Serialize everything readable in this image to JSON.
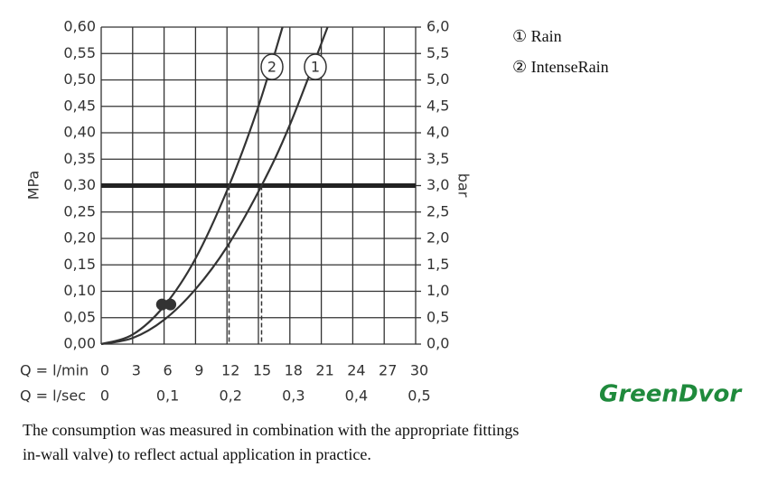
{
  "chart_data": {
    "type": "line",
    "ylabel": "MPa",
    "y2label": "bar",
    "xlabel": "Q = l/min",
    "x2label": "Q = l/sec",
    "xlim": [
      0,
      30
    ],
    "xticks": [
      0,
      3,
      6,
      9,
      12,
      15,
      18,
      21,
      24,
      27,
      30
    ],
    "x2lim": [
      0,
      0.5
    ],
    "x2ticks": [
      0,
      {
        "value": 0.1,
        "label": "0,1"
      },
      {
        "value": 0.2,
        "label": "0,2"
      },
      {
        "value": 0.3,
        "label": "0,3"
      },
      {
        "value": 0.4,
        "label": "0,4"
      },
      {
        "value": 0.5,
        "label": "0,5"
      }
    ],
    "ylim": [
      0,
      0.6
    ],
    "yticks": [
      {
        "value": 0,
        "label": "0,00"
      },
      {
        "value": 0.05,
        "label": "0,05"
      },
      {
        "value": 0.1,
        "label": "0,10"
      },
      {
        "value": 0.15,
        "label": "0,15"
      },
      {
        "value": 0.2,
        "label": "0,20"
      },
      {
        "value": 0.25,
        "label": "0,25"
      },
      {
        "value": 0.3,
        "label": "0,30"
      },
      {
        "value": 0.35,
        "label": "0,35"
      },
      {
        "value": 0.4,
        "label": "0,40"
      },
      {
        "value": 0.45,
        "label": "0,45"
      },
      {
        "value": 0.5,
        "label": "0,50"
      },
      {
        "value": 0.55,
        "label": "0,55"
      },
      {
        "value": 0.6,
        "label": "0,60"
      }
    ],
    "y2lim": [
      0,
      6
    ],
    "y2ticks": [
      {
        "value": 0,
        "label": "0,0"
      },
      {
        "value": 0.5,
        "label": "0,5"
      },
      {
        "value": 1,
        "label": "1,0"
      },
      {
        "value": 1.5,
        "label": "1,5"
      },
      {
        "value": 2,
        "label": "2,0"
      },
      {
        "value": 2.5,
        "label": "2,5"
      },
      {
        "value": 3,
        "label": "3,0"
      },
      {
        "value": 3.5,
        "label": "3,5"
      },
      {
        "value": 4,
        "label": "4,0"
      },
      {
        "value": 4.5,
        "label": "4,5"
      },
      {
        "value": 5,
        "label": "5,0"
      },
      {
        "value": 5.5,
        "label": "5,5"
      },
      {
        "value": 6,
        "label": "6,0"
      }
    ],
    "grid": true,
    "color": "#333333",
    "series": [
      {
        "name": "Rain",
        "symbol": "①",
        "label": "1",
        "color": "#333333",
        "x": [
          0,
          3,
          6,
          9,
          12,
          15.3,
          18,
          21.6
        ],
        "values": [
          0,
          0.0115,
          0.046,
          0.104,
          0.184,
          0.3,
          0.415,
          0.6
        ]
      },
      {
        "name": "IntenseRain",
        "symbol": "②",
        "label": "2",
        "color": "#333333",
        "x": [
          0,
          3,
          6,
          9,
          12.2,
          15,
          17.3
        ],
        "values": [
          0,
          0.018,
          0.072,
          0.162,
          0.3,
          0.45,
          0.6
        ]
      }
    ],
    "hline": 0.3,
    "vlines": [
      12.2,
      15.3
    ],
    "markers": {
      "x": [
        5.8,
        6.6
      ],
      "y": [
        0.075,
        0.075
      ]
    },
    "footnote": [
      "The consumption was measured in combination with the appropriate fittings",
      "in-wall valve) to reflect actual application in practice."
    ],
    "watermark": "GreenDvor"
  }
}
